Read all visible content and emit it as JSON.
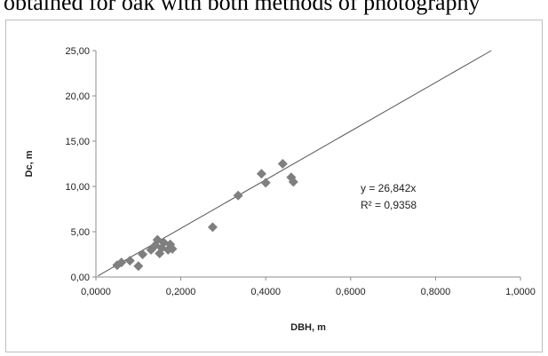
{
  "caption": "obtained for oak with both methods of photography",
  "chart_data": {
    "type": "scatter",
    "xlabel": "DBH, m",
    "ylabel": "Dc, m",
    "xlim": [
      0,
      1.0
    ],
    "ylim": [
      0,
      25
    ],
    "x_ticks": [
      "0,0000",
      "0,2000",
      "0,4000",
      "0,6000",
      "0,8000",
      "1,0000"
    ],
    "y_ticks": [
      "0,00",
      "5,00",
      "10,00",
      "15,00",
      "20,00",
      "25,00"
    ],
    "x_tick_values": [
      0,
      0.2,
      0.4,
      0.6,
      0.8,
      1.0
    ],
    "y_tick_values": [
      0,
      5,
      10,
      15,
      20,
      25
    ],
    "grid": false,
    "marker_color": "#7f7f7f",
    "trendline": {
      "slope": 26.842,
      "equation": "y = 26,842x",
      "r2": "R² = 0,9358",
      "color": "#555555"
    },
    "points": [
      {
        "x": 0.05,
        "y": 1.3
      },
      {
        "x": 0.06,
        "y": 1.6
      },
      {
        "x": 0.08,
        "y": 1.8
      },
      {
        "x": 0.1,
        "y": 1.2
      },
      {
        "x": 0.11,
        "y": 2.5
      },
      {
        "x": 0.13,
        "y": 3.0
      },
      {
        "x": 0.14,
        "y": 3.5
      },
      {
        "x": 0.145,
        "y": 4.1
      },
      {
        "x": 0.15,
        "y": 2.6
      },
      {
        "x": 0.155,
        "y": 3.2
      },
      {
        "x": 0.16,
        "y": 3.8
      },
      {
        "x": 0.17,
        "y": 3.0
      },
      {
        "x": 0.175,
        "y": 3.6
      },
      {
        "x": 0.18,
        "y": 3.1
      },
      {
        "x": 0.275,
        "y": 5.5
      },
      {
        "x": 0.335,
        "y": 9.0
      },
      {
        "x": 0.39,
        "y": 11.4
      },
      {
        "x": 0.4,
        "y": 10.4
      },
      {
        "x": 0.44,
        "y": 12.5
      },
      {
        "x": 0.46,
        "y": 11.0
      },
      {
        "x": 0.465,
        "y": 10.5
      }
    ]
  }
}
